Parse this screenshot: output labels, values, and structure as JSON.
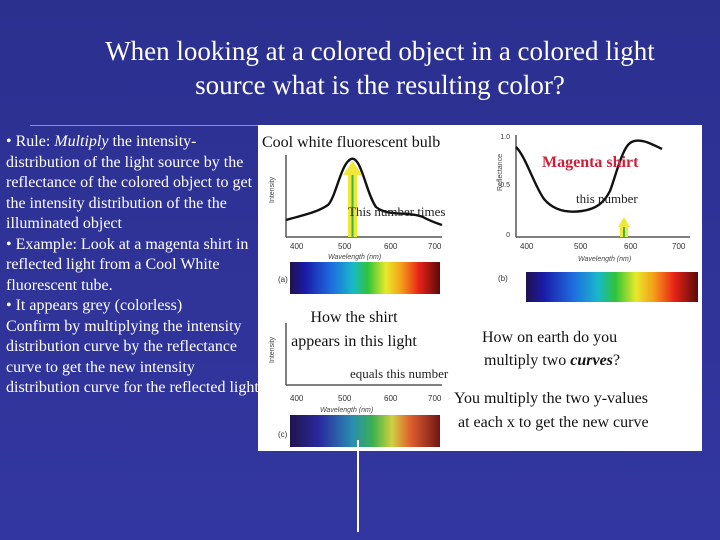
{
  "slide": {
    "title_line1": "When looking at a colored object in a colored light",
    "title_line2": "source what is the resulting color?",
    "bullets": {
      "rule_prefix": "• Rule: ",
      "rule_emph": "Multiply",
      "rule_rest": " the intensity-distribution of the light source by the reflectance of the colored object to get the intensity distribution of the the illuminated object",
      "example": "• Example: Look at a magenta shirt in reflected light from a Cool White fluorescent tube.",
      "appears": "• It appears grey (colorless)",
      "confirm": "Confirm by multiplying the intensity distribution curve by the reflectance curve to get the new intensity distribution curve for the reflected light"
    }
  },
  "figure": {
    "bulb_label": "Cool white fluorescent bulb",
    "shirt_label": "Magenta shirt",
    "this_number_times": "This number times",
    "this_number": "this number",
    "how_shirt_line1": "How the shirt",
    "how_shirt_line2": "appears in this light",
    "equals_this_number": "equals this number",
    "question_line1": "How on earth do you",
    "question_line2_a": "multiply two ",
    "question_line2_b": "curves",
    "question_line2_c": "?",
    "answer_line1": "You multiply the two y-values",
    "answer_line2": "at each x to get the new curve",
    "graph_a": {
      "y_axis": "Intensity",
      "x_axis": "Wavelength (nm)",
      "x_ticks": [
        "400",
        "500",
        "600",
        "700"
      ],
      "panel_label": "(a)"
    },
    "graph_b": {
      "y_axis": "Reflectance",
      "x_axis": "Wavelength (nm)",
      "x_ticks": [
        "400",
        "500",
        "600",
        "700"
      ],
      "y_ticks": [
        "1.0",
        "0.5",
        "0"
      ],
      "panel_label": "(b)"
    },
    "graph_c": {
      "y_axis": "Intensity",
      "x_axis": "Wavelength (nm)",
      "x_ticks": [
        "400",
        "500",
        "600",
        "700"
      ],
      "panel_label": "(c)"
    },
    "colors": {
      "label_red": "#cc1f3a",
      "arrow_yellow": "#f0e838",
      "arrow_green": "#39b54a",
      "slide_bg": "#2f3397"
    }
  }
}
